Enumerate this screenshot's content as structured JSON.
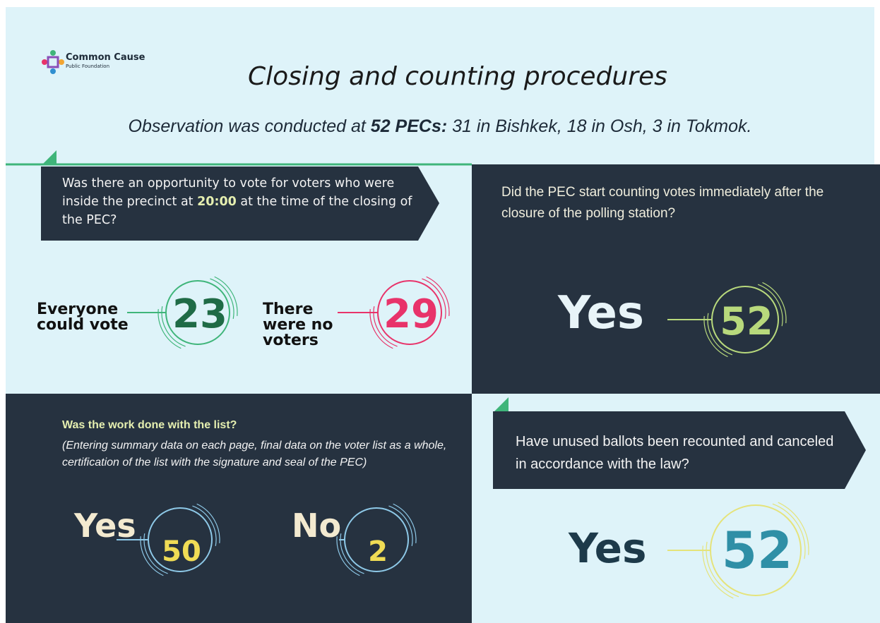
{
  "header": {
    "logo_name": "Common Cause",
    "logo_sub": "Public Foundation",
    "title": "Closing and counting procedures",
    "subtitle": [
      "Observation was conducted at ",
      "52 PECs:",
      " 31 in Bishkek, 18 in Osh, 3 in Tokmok."
    ]
  },
  "panels": [
    {
      "question": [
        "Was there an opportunity to vote for voters who were inside the precinct at ",
        "20:00",
        " at the time of the closing of the PEC?"
      ],
      "answers": [
        {
          "label": "Everyone could vote",
          "value": 23
        },
        {
          "label": "There were no voters",
          "value": 29
        }
      ]
    },
    {
      "question": [
        "Did the PEC start counting votes immediately after the closure of the polling station?"
      ],
      "answers": [
        {
          "label": "Yes",
          "value": 52
        }
      ]
    },
    {
      "question": [
        "Was the work done with the list?"
      ],
      "note": "(Entering summary data on each page, final data on the voter list as a whole, certification of the list with the signature and seal of the PEC)",
      "answers": [
        {
          "label": "Yes",
          "value": 50
        },
        {
          "label": "No",
          "value": 2
        }
      ]
    },
    {
      "question": [
        "Have unused ballots been recounted and canceled in accordance with the law?"
      ],
      "answers": [
        {
          "label": "Yes",
          "value": 52
        }
      ]
    }
  ]
}
